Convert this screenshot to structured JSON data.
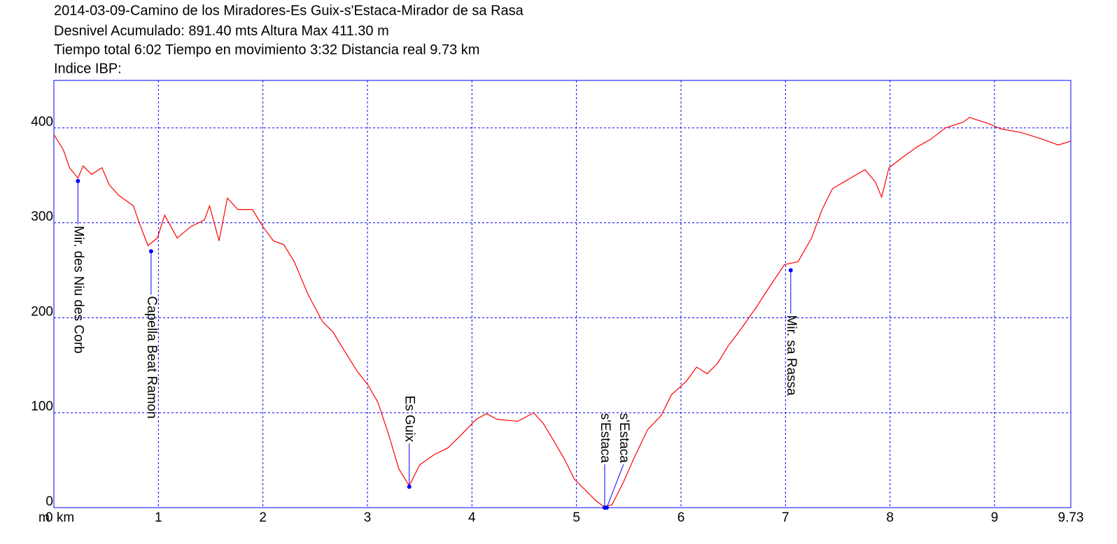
{
  "chart_data": {
    "type": "line",
    "title": "2014-03-09-Camino de los Miradores-Es Guix-s'Estaca-Mirador de sa Rasa",
    "subtitle": [
      "Desnivel Acumulado: 891.40 mts  Altura Max 411.30 m",
      "Tiempo total 6:02 Tiempo en movimiento 3:32 Distancia real 9.73 km",
      "Indice IBP:"
    ],
    "y_label": "m",
    "xlim": [
      0,
      9.73
    ],
    "ylim": [
      0,
      450
    ],
    "xticks": [
      {
        "value": 0,
        "label": "0 km"
      },
      1,
      2,
      3,
      4,
      5,
      6,
      7,
      8,
      9,
      9.73
    ],
    "yticks": [
      0,
      100,
      200,
      300,
      400
    ],
    "grid": true,
    "series": [
      {
        "color": "#ff0000",
        "x": [
          0,
          0.09,
          0.15,
          0.23,
          0.28,
          0.36,
          0.46,
          0.53,
          0.62,
          0.76,
          0.82,
          0.9,
          0.99,
          1.06,
          1.18,
          1.31,
          1.44,
          1.49,
          1.58,
          1.66,
          1.76,
          1.9,
          2.0,
          2.1,
          2.2,
          2.3,
          2.43,
          2.57,
          2.67,
          2.77,
          2.9,
          3.0,
          3.1,
          3.2,
          3.3,
          3.4,
          3.5,
          3.64,
          3.77,
          3.9,
          4.04,
          4.14,
          4.24,
          4.44,
          4.59,
          4.68,
          4.78,
          4.88,
          4.98,
          5.08,
          5.18,
          5.26,
          5.34,
          5.45,
          5.55,
          5.68,
          5.81,
          5.91,
          6.05,
          6.15,
          6.25,
          6.35,
          6.45,
          6.58,
          6.72,
          6.85,
          6.99,
          7.12,
          7.25,
          7.35,
          7.45,
          7.59,
          7.76,
          7.86,
          7.92,
          7.99,
          8.12,
          8.26,
          8.39,
          8.53,
          8.7,
          8.76,
          8.93,
          9.06,
          9.26,
          9.46,
          9.61,
          9.73
        ],
        "values": [
          393,
          377,
          358,
          347,
          360,
          351,
          358,
          340,
          329,
          318,
          299,
          276,
          284,
          308,
          284,
          296,
          303,
          318,
          281,
          326,
          314,
          314,
          296,
          281,
          277,
          259,
          225,
          196,
          185,
          167,
          144,
          130,
          111,
          78,
          41,
          23,
          45,
          56,
          63,
          77,
          93,
          99,
          93,
          91,
          100,
          89,
          71,
          52,
          30,
          19,
          8,
          1,
          3,
          27,
          52,
          82,
          97,
          119,
          133,
          148,
          141,
          152,
          170,
          189,
          211,
          233,
          256,
          259,
          284,
          314,
          336,
          345,
          356,
          343,
          327,
          358,
          369,
          380,
          388,
          400,
          406,
          411,
          405,
          399,
          395,
          388,
          382,
          386
        ]
      }
    ],
    "waypoints": [
      {
        "name": "Mir. des Niu des Corb",
        "x": 0.23,
        "y": 344
      },
      {
        "name": "Capella Beat Ramon",
        "x": 0.93,
        "y": 270
      },
      {
        "name": "Es Guix",
        "x": 3.4,
        "y": 22
      },
      {
        "name": "s'Estaca",
        "x": 5.27,
        "y": 0
      },
      {
        "name": "s'Estaca",
        "x": 5.29,
        "y": 0
      },
      {
        "name": "Mir. sa Rassa",
        "x": 7.05,
        "y": 250
      }
    ],
    "waypoint_color": "#0000ff"
  }
}
